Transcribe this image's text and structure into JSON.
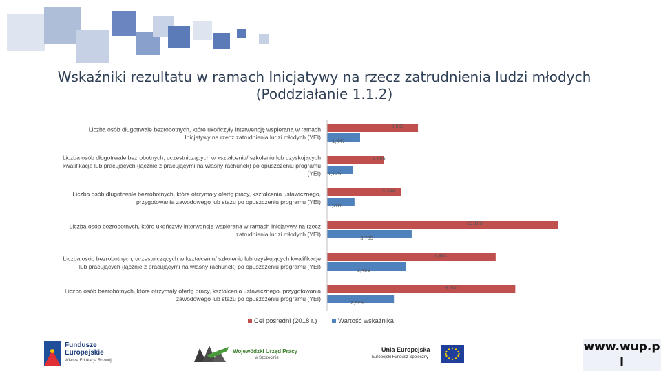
{
  "header": {
    "title_line1": "Wskaźniki rezultatu w ramach Inicjatywy na rzecz zatrudnienia ludzi młodych",
    "title_line2": "(Poddziałanie 1.1.2)"
  },
  "colors": {
    "deco_dark": "#5b7ab8",
    "deco_light": "#aebdd8",
    "series_target": "#c0504d",
    "series_value": "#4f81bd"
  },
  "chart_data": {
    "type": "bar",
    "orientation": "horizontal",
    "categories": [
      [
        "Liczba osób długotrwale bezrobotnych, które ukończyły interwencję wspieraną w ramach",
        "Inicjatywy na rzecz zatrudnienia ludzi młodych (YEI)"
      ],
      [
        "Liczba osób długotrwale bezrobotnych, uczestniczących w kształceniu/ szkoleniu lub uzyskujących",
        "kwalifikacje lub pracujących (łącznie z pracującymi na własny rachunek) po opuszczeniu programu",
        "(YEI)"
      ],
      [
        "Liczba osób długotrwale bezrobotnych, które otrzymały ofertę pracy, kształcenia ustawicznego,",
        "przygotowania zawodowego lub stażu po opuszczeniu programu (YEI)"
      ],
      [
        "Liczba osób bezrobotnych, które ukończyły interwencję wspieraną w ramach Inicjatywy na rzecz",
        "zatrudnienia ludzi młodych (YEI)"
      ],
      [
        "Liczba osób bezrobotnych, uczestniczących w kształceniu/ szkoleniu lub uzyskujących kwalifikacje",
        "lub pracujących (łącznie z pracującymi na własny rachunek) po opuszczeniu programu (YEI)"
      ],
      [
        "Liczba osób bezrobotnych, które otrzymały ofertę pracy, kształcenia ustawicznego, przygotowania",
        "zawodowego lub stażu po opuszczeniu programu (YEI)"
      ]
    ],
    "series": [
      {
        "name": "Cel pośredni (2018 r.)",
        "values": [
          3981,
          2486,
          3244,
          10103,
          7381,
          8240
        ],
        "labels": [
          "3,981",
          "2,486",
          "3,244",
          "10,103",
          "7,381",
          "8,240"
        ]
      },
      {
        "name": "Wartość wskaźnika",
        "values": [
          1447,
          1125,
          1201,
          3705,
          3459,
          2929
        ],
        "labels": [
          "1,447",
          "1,125",
          "1,201",
          "3,705",
          "3,459",
          "2,929"
        ]
      }
    ],
    "xlim": [
      0,
      10400
    ],
    "legend": "bottom",
    "grid": false
  },
  "footer": {
    "fe_line1": "Fundusze",
    "fe_line2": "Europejskie",
    "fe_line3": "Wiedza Edukacja Rozwój",
    "wup_line1": "Wojewódzki Urząd Pracy",
    "wup_line2": "w Szczecinie",
    "ue_line1": "Unia Europejska",
    "ue_line2": "Europejski Fundusz Społeczny",
    "www_line1": "www.wup.p",
    "www_line2": "l"
  }
}
